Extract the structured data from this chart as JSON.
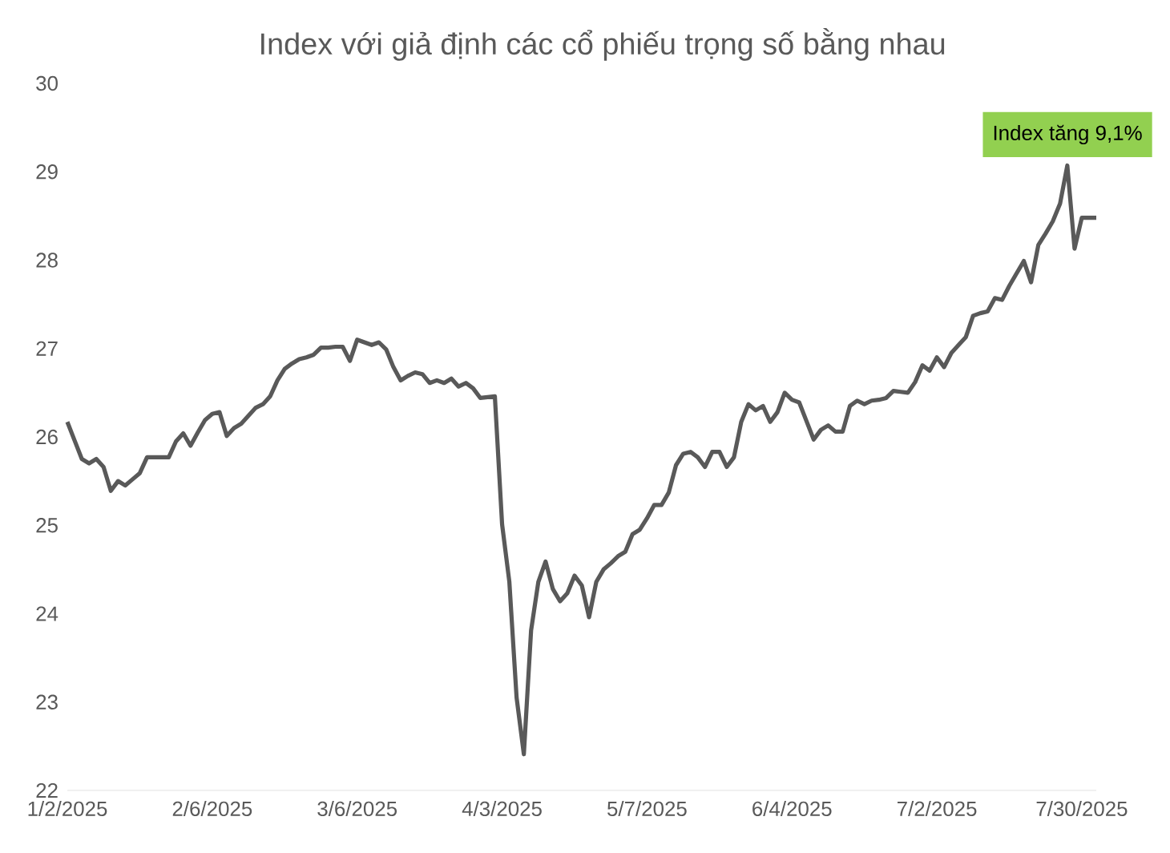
{
  "chart_data": {
    "type": "line",
    "title": "Index với giả định các cổ phiếu trọng số bằng nhau",
    "categories": [
      "1/2/2025",
      null,
      null,
      null,
      null,
      null,
      null,
      null,
      null,
      null,
      null,
      null,
      null,
      null,
      null,
      null,
      null,
      null,
      null,
      null,
      "2/6/2025",
      null,
      null,
      null,
      null,
      null,
      null,
      null,
      null,
      null,
      null,
      null,
      null,
      null,
      null,
      null,
      null,
      null,
      null,
      null,
      "3/6/2025",
      null,
      null,
      null,
      null,
      null,
      null,
      null,
      null,
      null,
      null,
      null,
      null,
      null,
      null,
      null,
      null,
      null,
      null,
      null,
      "4/3/2025",
      null,
      null,
      null,
      null,
      null,
      null,
      null,
      null,
      null,
      null,
      null,
      null,
      null,
      null,
      null,
      null,
      null,
      null,
      null,
      "5/7/2025",
      null,
      null,
      null,
      null,
      null,
      null,
      null,
      null,
      null,
      null,
      null,
      null,
      null,
      null,
      null,
      null,
      null,
      null,
      null,
      "6/4/2025",
      null,
      null,
      null,
      null,
      null,
      null,
      null,
      null,
      null,
      null,
      null,
      null,
      null,
      null,
      null,
      null,
      null,
      null,
      null,
      "7/2/2025",
      null,
      null,
      null,
      null,
      null,
      null,
      null,
      null,
      null,
      null,
      null,
      null,
      null,
      null,
      null,
      null,
      null,
      null,
      null,
      "7/30/2025",
      null,
      null
    ],
    "series": [
      {
        "color": "#595959",
        "values": [
          26.17,
          25.96,
          25.75,
          25.7,
          25.75,
          25.66,
          25.39,
          25.5,
          25.45,
          25.52,
          25.59,
          25.77,
          25.77,
          25.77,
          25.77,
          25.95,
          26.04,
          25.9,
          26.05,
          26.19,
          26.26,
          26.28,
          26.01,
          26.1,
          26.15,
          26.24,
          26.33,
          26.37,
          26.46,
          26.64,
          26.77,
          26.83,
          26.88,
          26.9,
          26.93,
          27.01,
          27.01,
          27.02,
          27.02,
          26.86,
          27.1,
          27.07,
          27.04,
          27.07,
          26.99,
          26.79,
          26.64,
          26.69,
          26.73,
          26.71,
          26.61,
          26.64,
          26.61,
          26.66,
          26.57,
          26.61,
          26.55,
          26.44,
          26.45,
          26.46,
          25.01,
          24.36,
          23.05,
          22.41,
          23.81,
          24.36,
          24.59,
          24.28,
          24.14,
          24.23,
          24.43,
          24.32,
          23.96,
          24.36,
          24.5,
          24.57,
          24.65,
          24.7,
          24.9,
          24.95,
          25.08,
          25.23,
          25.23,
          25.37,
          25.68,
          25.81,
          25.83,
          25.77,
          25.66,
          25.83,
          25.83,
          25.66,
          25.77,
          26.17,
          26.37,
          26.3,
          26.35,
          26.17,
          26.28,
          26.5,
          26.42,
          26.39,
          26.18,
          25.97,
          26.08,
          26.13,
          26.06,
          26.06,
          26.35,
          26.41,
          26.37,
          26.41,
          26.42,
          26.44,
          26.52,
          26.51,
          26.5,
          26.62,
          26.81,
          26.75,
          26.9,
          26.79,
          26.95,
          27.04,
          27.13,
          27.37,
          27.4,
          27.42,
          27.57,
          27.55,
          27.71,
          27.85,
          27.99,
          27.75,
          28.17,
          28.3,
          28.44,
          28.64,
          29.07,
          28.13,
          28.48,
          28.48,
          28.48
        ]
      }
    ],
    "ylim": [
      22,
      30
    ],
    "yticks": [
      22,
      23,
      24,
      25,
      26,
      27,
      28,
      29,
      30
    ],
    "annotations": [
      {
        "text": "Index tăng 9,1%",
        "y": 29.07
      }
    ],
    "grid": false,
    "legend": false,
    "marker": "none",
    "line_style": "solid"
  }
}
